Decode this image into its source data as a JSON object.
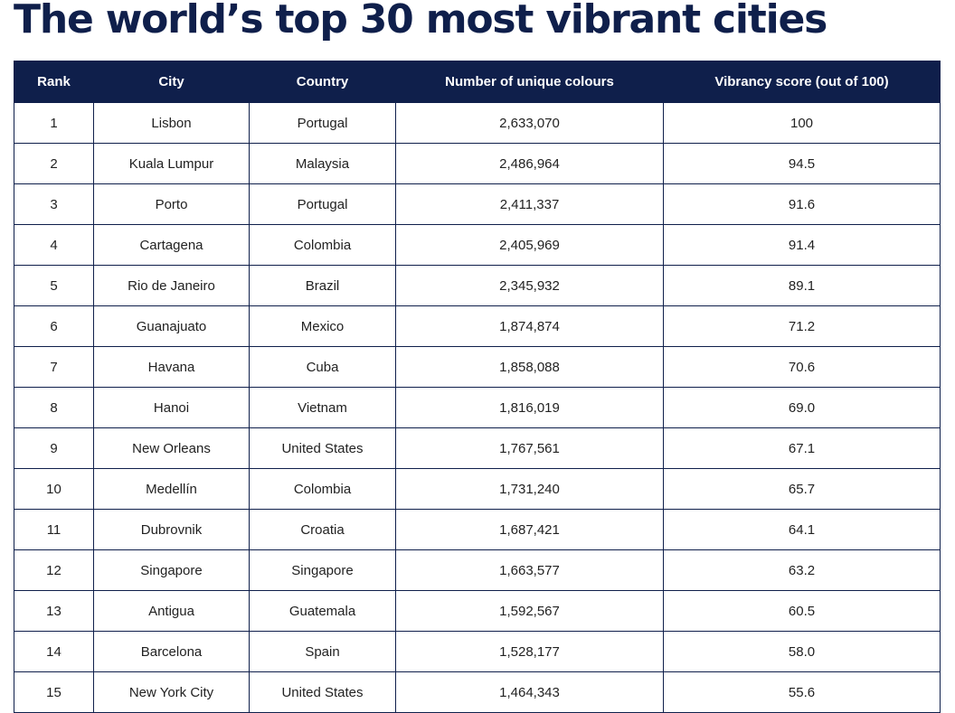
{
  "title": "The world’s top 30 most vibrant cities",
  "colors": {
    "header_bg": "#0f1f4b",
    "border": "#0f1f4b"
  },
  "table": {
    "headers": [
      "Rank",
      "City",
      "Country",
      "Number of unique colours",
      "Vibrancy score (out of 100)"
    ],
    "rows": [
      [
        "1",
        "Lisbon",
        "Portugal",
        "2,633,070",
        "100"
      ],
      [
        "2",
        "Kuala Lumpur",
        "Malaysia",
        "2,486,964",
        "94.5"
      ],
      [
        "3",
        "Porto",
        "Portugal",
        "2,411,337",
        "91.6"
      ],
      [
        "4",
        "Cartagena",
        "Colombia",
        "2,405,969",
        "91.4"
      ],
      [
        "5",
        "Rio de Janeiro",
        "Brazil",
        "2,345,932",
        "89.1"
      ],
      [
        "6",
        "Guanajuato",
        "Mexico",
        "1,874,874",
        "71.2"
      ],
      [
        "7",
        "Havana",
        "Cuba",
        "1,858,088",
        "70.6"
      ],
      [
        "8",
        "Hanoi",
        "Vietnam",
        "1,816,019",
        "69.0"
      ],
      [
        "9",
        "New Orleans",
        "United States",
        "1,767,561",
        "67.1"
      ],
      [
        "10",
        "Medellín",
        "Colombia",
        "1,731,240",
        "65.7"
      ],
      [
        "11",
        "Dubrovnik",
        "Croatia",
        "1,687,421",
        "64.1"
      ],
      [
        "12",
        "Singapore",
        "Singapore",
        "1,663,577",
        "63.2"
      ],
      [
        "13",
        "Antigua",
        "Guatemala",
        "1,592,567",
        "60.5"
      ],
      [
        "14",
        "Barcelona",
        "Spain",
        "1,528,177",
        "58.0"
      ],
      [
        "15",
        "New York City",
        "United States",
        "1,464,343",
        "55.6"
      ]
    ]
  }
}
